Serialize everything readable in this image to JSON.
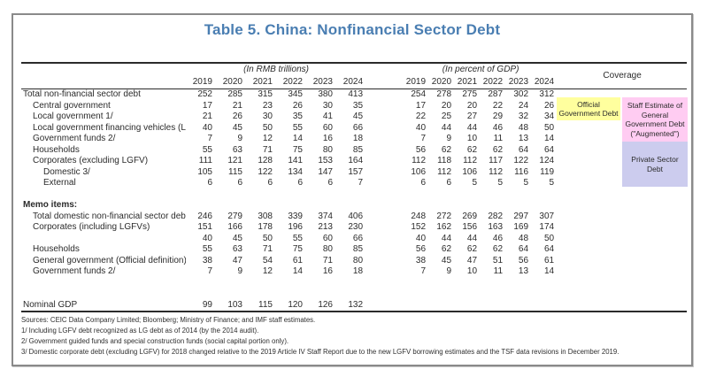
{
  "title": "Table 5. China: Nonfinancial Sector Debt",
  "title_color": "#4a7eb2",
  "header": {
    "unit_rmb": "(In RMB trillions)",
    "unit_gdp": "(In percent of GDP)",
    "coverage": "Coverage",
    "years": [
      "2019",
      "2020",
      "2021",
      "2022",
      "2023",
      "2024"
    ]
  },
  "rows": [
    {
      "type": "data",
      "indent": 0,
      "label": "Total non-financial sector debt",
      "rmb": [
        "252",
        "285",
        "315",
        "345",
        "380",
        "413"
      ],
      "gdp": [
        "254",
        "278",
        "275",
        "287",
        "302",
        "312"
      ]
    },
    {
      "type": "data",
      "indent": 1,
      "label": "Central government",
      "rmb": [
        "17",
        "21",
        "23",
        "26",
        "30",
        "35"
      ],
      "gdp": [
        "17",
        "20",
        "20",
        "22",
        "24",
        "26"
      ]
    },
    {
      "type": "data",
      "indent": 1,
      "label": "Local government 1/",
      "rmb": [
        "21",
        "26",
        "30",
        "35",
        "41",
        "45"
      ],
      "gdp": [
        "22",
        "25",
        "27",
        "29",
        "32",
        "34"
      ]
    },
    {
      "type": "data",
      "indent": 1,
      "label": "Local government financing vehicles (LGFV)",
      "rmb": [
        "40",
        "45",
        "50",
        "55",
        "60",
        "66"
      ],
      "gdp": [
        "40",
        "44",
        "44",
        "46",
        "48",
        "50"
      ]
    },
    {
      "type": "data",
      "indent": 1,
      "label": "Government funds 2/",
      "rmb": [
        "7",
        "9",
        "12",
        "14",
        "16",
        "18"
      ],
      "gdp": [
        "7",
        "9",
        "10",
        "11",
        "13",
        "14"
      ]
    },
    {
      "type": "data",
      "indent": 1,
      "label": "Households",
      "rmb": [
        "55",
        "63",
        "71",
        "75",
        "80",
        "85"
      ],
      "gdp": [
        "56",
        "62",
        "62",
        "62",
        "64",
        "64"
      ]
    },
    {
      "type": "data",
      "indent": 1,
      "label": "Corporates (excluding LGFV)",
      "rmb": [
        "111",
        "121",
        "128",
        "141",
        "153",
        "164"
      ],
      "gdp": [
        "112",
        "118",
        "112",
        "117",
        "122",
        "124"
      ]
    },
    {
      "type": "data",
      "indent": 2,
      "label": "Domestic 3/",
      "rmb": [
        "105",
        "115",
        "122",
        "134",
        "147",
        "157"
      ],
      "gdp": [
        "106",
        "112",
        "106",
        "112",
        "116",
        "119"
      ]
    },
    {
      "type": "data",
      "indent": 2,
      "label": "External",
      "rmb": [
        "6",
        "6",
        "6",
        "6",
        "6",
        "7"
      ],
      "gdp": [
        "6",
        "6",
        "5",
        "5",
        "5",
        "5"
      ]
    },
    {
      "type": "spacer"
    },
    {
      "type": "section",
      "label": "Memo items:"
    },
    {
      "type": "data",
      "indent": 1,
      "label": "Total domestic non-financial sector debt",
      "rmb": [
        "246",
        "279",
        "308",
        "339",
        "374",
        "406"
      ],
      "gdp": [
        "248",
        "272",
        "269",
        "282",
        "297",
        "307"
      ]
    },
    {
      "type": "data",
      "indent": 1,
      "label": "Corporates (including LGFVs)",
      "rmb": [
        "151",
        "166",
        "178",
        "196",
        "213",
        "230"
      ],
      "gdp": [
        "152",
        "162",
        "156",
        "163",
        "169",
        "174"
      ]
    },
    {
      "type": "data",
      "indent": 1,
      "label": "",
      "rmb": [
        "40",
        "45",
        "50",
        "55",
        "60",
        "66"
      ],
      "gdp": [
        "40",
        "44",
        "44",
        "46",
        "48",
        "50"
      ]
    },
    {
      "type": "data",
      "indent": 1,
      "label": "Households",
      "rmb": [
        "55",
        "63",
        "71",
        "75",
        "80",
        "85"
      ],
      "gdp": [
        "56",
        "62",
        "62",
        "62",
        "64",
        "64"
      ]
    },
    {
      "type": "data",
      "indent": 1,
      "label": "General government (Official definition)",
      "rmb": [
        "38",
        "47",
        "54",
        "61",
        "71",
        "80"
      ],
      "gdp": [
        "38",
        "45",
        "47",
        "51",
        "56",
        "61"
      ]
    },
    {
      "type": "data",
      "indent": 1,
      "label": "Government funds 2/",
      "rmb": [
        "7",
        "9",
        "12",
        "14",
        "16",
        "18"
      ],
      "gdp": [
        "7",
        "9",
        "10",
        "11",
        "13",
        "14"
      ]
    },
    {
      "type": "spacer2"
    },
    {
      "type": "data",
      "indent": 0,
      "label": "Nominal GDP",
      "rmb": [
        "99",
        "103",
        "115",
        "120",
        "126",
        "132"
      ],
      "gdp": [
        "",
        "",
        "",
        "",
        "",
        ""
      ]
    }
  ],
  "coverage_boxes": [
    {
      "label": "Official Government Debt",
      "color": "#ffff9e"
    },
    {
      "label": "Staff Estimate of General Government Debt (\"Augmented\")",
      "color": "#ffccf2"
    },
    {
      "label": "Private Sector Debt",
      "color": "#ccccee"
    }
  ],
  "footnotes": [
    "Sources: CEIC Data Company Limited; Bloomberg; Ministry of Finance; and IMF staff estimates.",
    "1/ Including LGFV debt recognized as LG debt as of 2014 (by the 2014 audit).",
    "2/ Government guided funds and special construction funds (social capital portion only).",
    "3/ Domestic corporate debt (excluding LGFV) for 2018 changed relative to the 2019 Article IV Staff Report due to the new LGFV borrowing estimates and the TSF data revisions in December 2019."
  ]
}
